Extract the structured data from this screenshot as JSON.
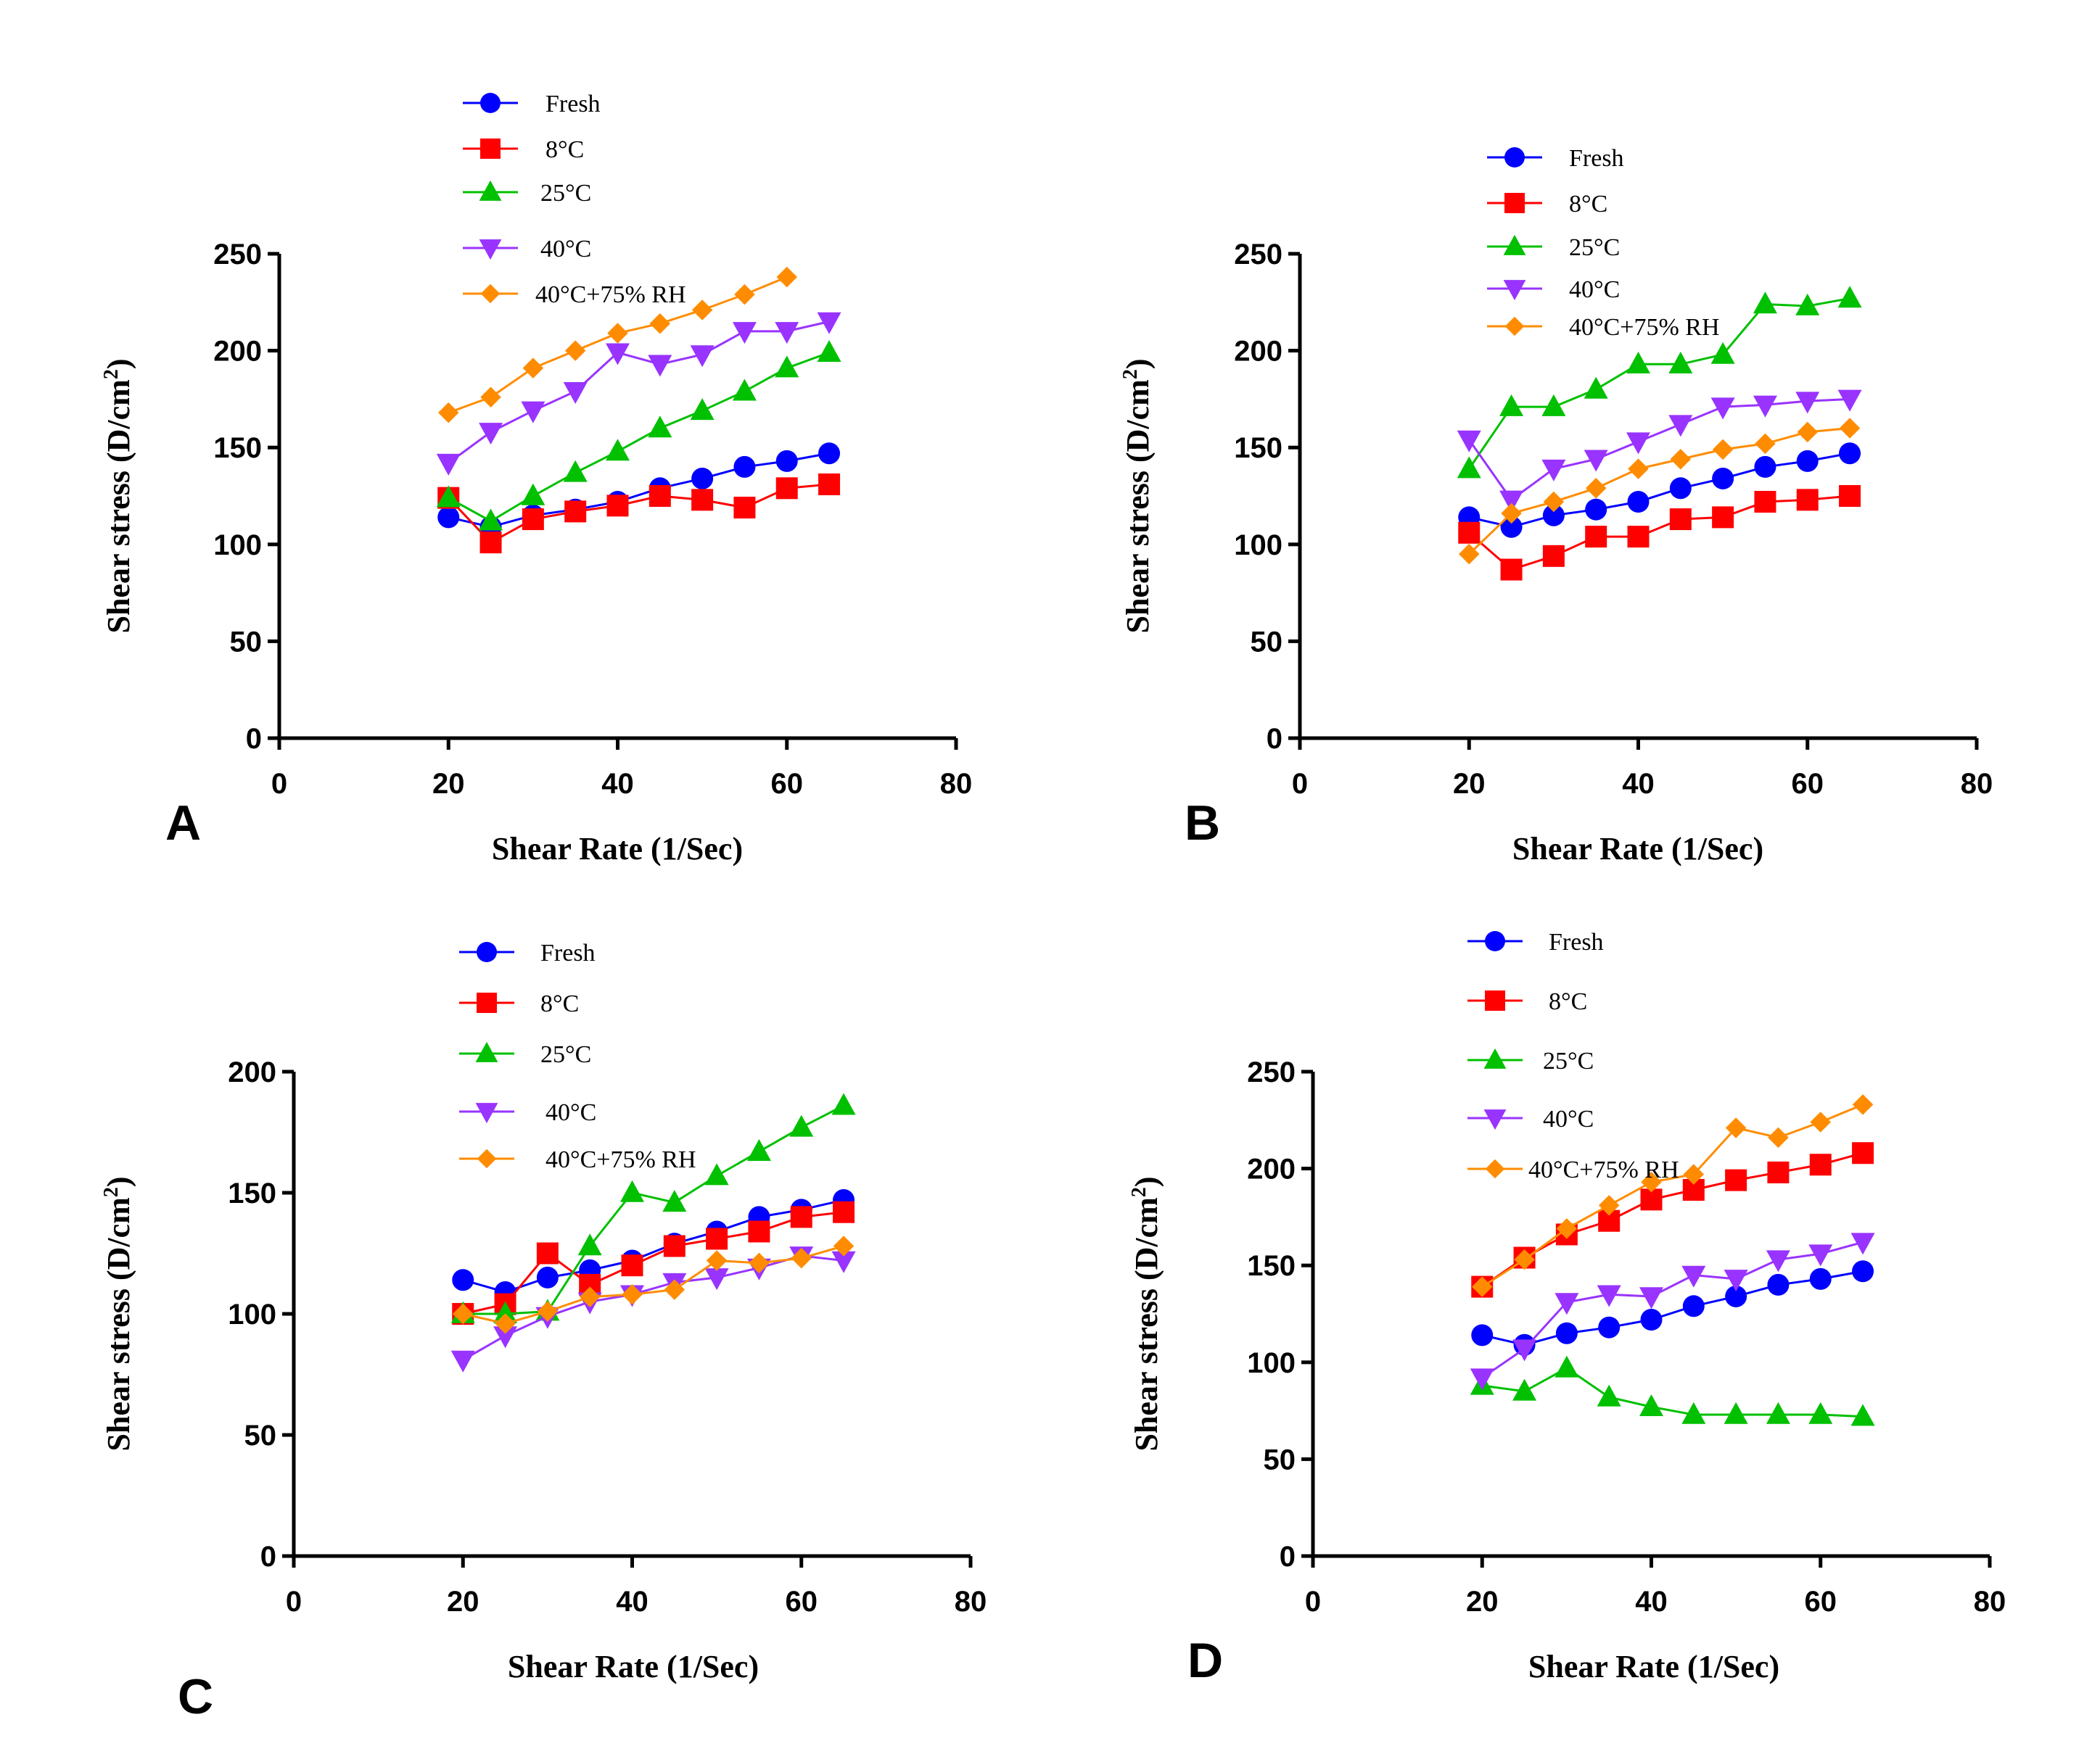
{
  "series_styles": [
    {
      "name": "Fresh",
      "color": "#0000ff",
      "marker": "circle"
    },
    {
      "name": "8°C",
      "color": "#ff0000",
      "marker": "square"
    },
    {
      "name": "25°C",
      "color": "#00c000",
      "marker": "triangle-up"
    },
    {
      "name": "40°C",
      "color": "#9933ff",
      "marker": "triangle-down"
    },
    {
      "name": "40°C+75% RH",
      "color": "#ff8c00",
      "marker": "diamond"
    }
  ],
  "chart_data": [
    {
      "panel": "A",
      "type": "line",
      "title": "",
      "xlabel": "Shear Rate (1/Sec)",
      "ylabel_main": "Shear stress (D/cm",
      "ylabel_sup": "2",
      "ylabel_close": ")",
      "xlim": [
        0,
        80
      ],
      "ylim": [
        0,
        250
      ],
      "xticks": [
        0,
        20,
        40,
        60,
        80
      ],
      "yticks": [
        0,
        50,
        100,
        150,
        200,
        250
      ],
      "x": [
        20,
        25,
        30,
        35,
        40,
        45,
        50,
        55,
        60,
        65
      ],
      "series": [
        {
          "name": "Fresh",
          "values": [
            114,
            109,
            115,
            118,
            122,
            129,
            134,
            140,
            143,
            147
          ]
        },
        {
          "name": "8°C",
          "values": [
            124,
            101,
            113,
            117,
            120,
            125,
            123,
            119,
            129,
            131
          ]
        },
        {
          "name": "25°C",
          "values": [
            124,
            112,
            125,
            137,
            148,
            160,
            169,
            179,
            191,
            199
          ]
        },
        {
          "name": "40°C",
          "values": [
            142,
            158,
            169,
            179,
            199,
            193,
            198,
            210,
            210,
            215
          ]
        },
        {
          "name": "40°C+75% RH",
          "values": [
            168,
            176,
            191,
            200,
            209,
            214,
            221,
            229,
            238,
            null
          ]
        }
      ]
    },
    {
      "panel": "B",
      "type": "line",
      "title": "",
      "xlabel": "Shear Rate (1/Sec)",
      "ylabel_main": "Shear stress (D/cm",
      "ylabel_sup": "2",
      "ylabel_close": ")",
      "xlim": [
        0,
        80
      ],
      "ylim": [
        0,
        250
      ],
      "xticks": [
        0,
        20,
        40,
        60,
        80
      ],
      "yticks": [
        0,
        50,
        100,
        150,
        200,
        250
      ],
      "x": [
        20,
        25,
        30,
        35,
        40,
        45,
        50,
        55,
        60,
        65
      ],
      "series": [
        {
          "name": "Fresh",
          "values": [
            114,
            109,
            115,
            118,
            122,
            129,
            134,
            140,
            143,
            147
          ]
        },
        {
          "name": "8°C",
          "values": [
            106,
            87,
            94,
            104,
            104,
            113,
            114,
            122,
            123,
            125
          ]
        },
        {
          "name": "25°C",
          "values": [
            139,
            171,
            171,
            180,
            193,
            193,
            198,
            224,
            223,
            227
          ]
        },
        {
          "name": "40°C",
          "values": [
            154,
            123,
            139,
            144,
            153,
            162,
            171,
            172,
            174,
            175
          ]
        },
        {
          "name": "40°C+75% RH",
          "values": [
            95,
            116,
            122,
            129,
            139,
            144,
            149,
            152,
            158,
            160
          ]
        }
      ]
    },
    {
      "panel": "C",
      "type": "line",
      "title": "",
      "xlabel": "Shear Rate (1/Sec)",
      "ylabel_main": "Shear stress (D/cm",
      "ylabel_sup": "2",
      "ylabel_close": ")",
      "xlim": [
        0,
        80
      ],
      "ylim": [
        0,
        200
      ],
      "xticks": [
        0,
        20,
        40,
        60,
        80
      ],
      "yticks": [
        0,
        50,
        100,
        150,
        200
      ],
      "x": [
        20,
        25,
        30,
        35,
        40,
        45,
        50,
        55,
        60,
        65
      ],
      "series": [
        {
          "name": "Fresh",
          "values": [
            114,
            109,
            115,
            118,
            122,
            129,
            134,
            140,
            143,
            147
          ]
        },
        {
          "name": "8°C",
          "values": [
            100,
            104,
            125,
            112,
            120,
            128,
            131,
            134,
            140,
            142
          ]
        },
        {
          "name": "25°C",
          "values": [
            100,
            100,
            101,
            128,
            150,
            146,
            157,
            167,
            177,
            186
          ]
        },
        {
          "name": "40°C",
          "values": [
            81,
            91,
            99,
            105,
            108,
            113,
            115,
            119,
            124,
            122
          ]
        },
        {
          "name": "40°C+75% RH",
          "values": [
            100,
            96,
            101,
            107,
            108,
            110,
            122,
            121,
            123,
            128
          ]
        }
      ]
    },
    {
      "panel": "D",
      "type": "line",
      "title": "",
      "xlabel": "Shear Rate (1/Sec)",
      "ylabel_main": "Shear stress (D/cm",
      "ylabel_sup": "2",
      "ylabel_close": ")",
      "xlim": [
        0,
        80
      ],
      "ylim": [
        0,
        250
      ],
      "xticks": [
        0,
        20,
        40,
        60,
        80
      ],
      "yticks": [
        0,
        50,
        100,
        150,
        200,
        250
      ],
      "x": [
        20,
        25,
        30,
        35,
        40,
        45,
        50,
        55,
        60,
        65
      ],
      "series": [
        {
          "name": "Fresh",
          "values": [
            114,
            109,
            115,
            118,
            122,
            129,
            134,
            140,
            143,
            147
          ]
        },
        {
          "name": "8°C",
          "values": [
            139,
            154,
            166,
            173,
            184,
            189,
            194,
            198,
            202,
            208
          ]
        },
        {
          "name": "25°C",
          "values": [
            88,
            85,
            97,
            82,
            77,
            73,
            73,
            73,
            73,
            72
          ]
        },
        {
          "name": "40°C",
          "values": [
            92,
            107,
            131,
            135,
            134,
            145,
            143,
            153,
            156,
            162
          ]
        },
        {
          "name": "40°C+75% RH",
          "values": [
            139,
            153,
            169,
            181,
            193,
            197,
            221,
            216,
            224,
            233
          ]
        }
      ]
    }
  ]
}
